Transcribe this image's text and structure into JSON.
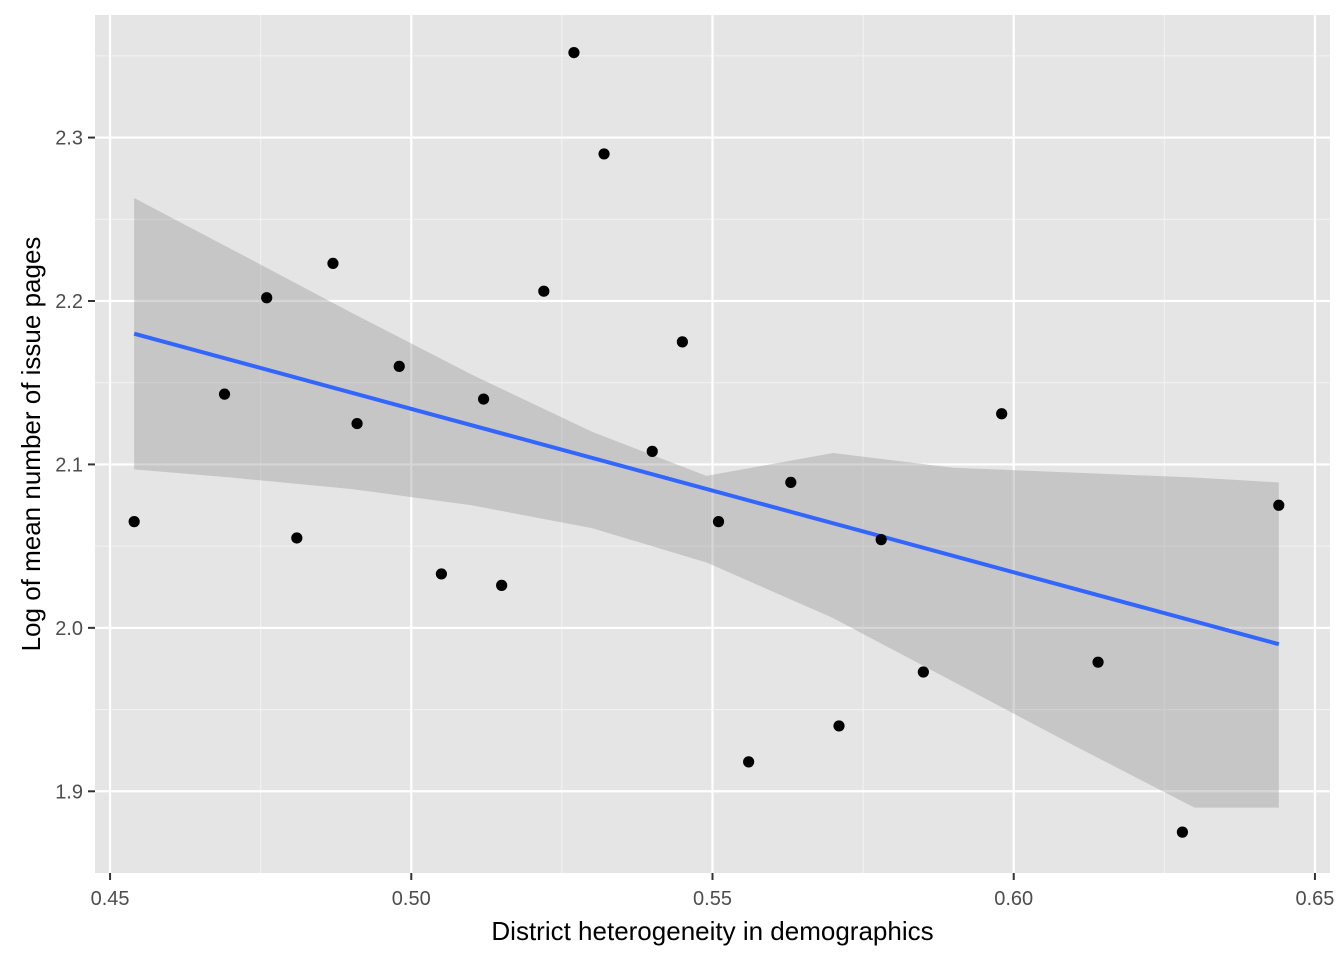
{
  "chart_data": {
    "type": "scatter",
    "title": "",
    "xlabel": "District heterogeneity in demographics",
    "ylabel": "Log of mean number of issue pages",
    "xlim": [
      0.4475,
      0.6525
    ],
    "ylim": [
      1.85,
      2.375
    ],
    "x_ticks": [
      0.45,
      0.5,
      0.55,
      0.6,
      0.65
    ],
    "x_tick_labels": [
      "0.45",
      "0.50",
      "0.55",
      "0.60",
      "0.65"
    ],
    "y_ticks": [
      1.9,
      2.0,
      2.1,
      2.2,
      2.3
    ],
    "y_tick_labels": [
      "1.9",
      "2.0",
      "2.1",
      "2.2",
      "2.3"
    ],
    "x_minor_ticks": [
      0.475,
      0.525,
      0.575,
      0.625
    ],
    "y_minor_ticks": [
      1.95,
      2.05,
      2.15,
      2.25,
      2.35
    ],
    "grid": true,
    "legend": "none",
    "points": [
      {
        "x": 0.454,
        "y": 2.065
      },
      {
        "x": 0.469,
        "y": 2.143
      },
      {
        "x": 0.476,
        "y": 2.202
      },
      {
        "x": 0.481,
        "y": 2.055
      },
      {
        "x": 0.487,
        "y": 2.223
      },
      {
        "x": 0.491,
        "y": 2.125
      },
      {
        "x": 0.498,
        "y": 2.16
      },
      {
        "x": 0.505,
        "y": 2.033
      },
      {
        "x": 0.512,
        "y": 2.14
      },
      {
        "x": 0.515,
        "y": 2.026
      },
      {
        "x": 0.522,
        "y": 2.206
      },
      {
        "x": 0.527,
        "y": 2.352
      },
      {
        "x": 0.532,
        "y": 2.29
      },
      {
        "x": 0.54,
        "y": 2.108
      },
      {
        "x": 0.545,
        "y": 2.175
      },
      {
        "x": 0.551,
        "y": 2.065
      },
      {
        "x": 0.556,
        "y": 1.918
      },
      {
        "x": 0.563,
        "y": 2.089
      },
      {
        "x": 0.571,
        "y": 1.94
      },
      {
        "x": 0.578,
        "y": 2.054
      },
      {
        "x": 0.585,
        "y": 1.973
      },
      {
        "x": 0.598,
        "y": 2.131
      },
      {
        "x": 0.614,
        "y": 1.979
      },
      {
        "x": 0.628,
        "y": 1.875
      },
      {
        "x": 0.644,
        "y": 2.075
      }
    ],
    "fit_line": {
      "x": [
        0.454,
        0.644
      ],
      "y": [
        2.18,
        1.99
      ]
    },
    "confidence_band": {
      "x": [
        0.454,
        0.47,
        0.49,
        0.51,
        0.53,
        0.549,
        0.57,
        0.59,
        0.61,
        0.63,
        0.644
      ],
      "lower": [
        2.097,
        2.092,
        2.085,
        2.075,
        2.061,
        2.04,
        2.006,
        1.967,
        1.928,
        1.89,
        1.89
      ],
      "upper": [
        2.263,
        2.232,
        2.193,
        2.155,
        2.12,
        2.093,
        2.107,
        2.098,
        2.095,
        2.092,
        2.089
      ]
    },
    "colors": {
      "panel_background": "#E5E5E5",
      "grid_major": "#FFFFFF",
      "grid_minor": "#F2F2F2",
      "points": "#000000",
      "fit_line": "#3366FF",
      "confidence_band": "#999999",
      "tick_label": "#4D4D4D",
      "axis_title": "#000000"
    }
  }
}
